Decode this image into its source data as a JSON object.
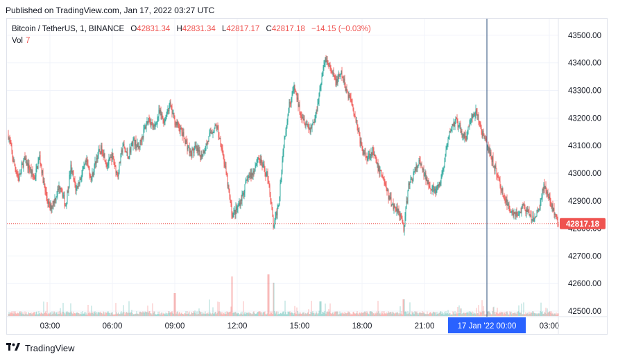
{
  "header": {
    "published": "Published on TradingView.com, Jan 17, 2022 03:27 UTC"
  },
  "legend": {
    "symbol": "Bitcoin / TetherUS, 1, BINANCE",
    "o_label": "O",
    "o_value": "42831.34",
    "h_label": "H",
    "h_value": "42831.34",
    "l_label": "L",
    "l_value": "42817.17",
    "c_label": "C",
    "c_value": "42817.18",
    "change": "−14.15 (−0.03%)",
    "vol_label": "Vol",
    "vol_value": "7"
  },
  "footer": {
    "brand": "TradingView"
  },
  "colors": {
    "up": "#26a69a",
    "down": "#ef5350",
    "price_tag": "#ef5350",
    "cursor_tag": "#2962ff",
    "crosshair": "#2a4d7a"
  },
  "chart_data": {
    "type": "candlestick",
    "title": "Bitcoin / TetherUS, 1, BINANCE",
    "ylim": [
      42480,
      43560
    ],
    "y_ticks": [
      "43500.00",
      "43400.00",
      "43300.00",
      "43200.00",
      "43100.00",
      "43000.00",
      "42900.00",
      "42800.00",
      "42700.00",
      "42600.00",
      "42500.00"
    ],
    "x_ticks": [
      "03:00",
      "06:00",
      "09:00",
      "12:00",
      "15:00",
      "18:00",
      "21:00",
      "00:00",
      "03:00"
    ],
    "cursor_label": "17 Jan '22   00:00",
    "last_price": "42817.18",
    "price_path": [
      [
        "01:00",
        43140
      ],
      [
        "01:15",
        43040
      ],
      [
        "01:30",
        42980
      ],
      [
        "01:45",
        43050
      ],
      [
        "02:00",
        43020
      ],
      [
        "02:15",
        42980
      ],
      [
        "02:30",
        43060
      ],
      [
        "02:45",
        42940
      ],
      [
        "03:00",
        42870
      ],
      [
        "03:15",
        42910
      ],
      [
        "03:30",
        42960
      ],
      [
        "03:45",
        42880
      ],
      [
        "04:00",
        43020
      ],
      [
        "04:15",
        42940
      ],
      [
        "04:30",
        42990
      ],
      [
        "04:45",
        43040
      ],
      [
        "05:00",
        42980
      ],
      [
        "05:15",
        43060
      ],
      [
        "05:30",
        43090
      ],
      [
        "05:45",
        43030
      ],
      [
        "06:00",
        43060
      ],
      [
        "06:15",
        42990
      ],
      [
        "06:30",
        43100
      ],
      [
        "06:45",
        43060
      ],
      [
        "07:00",
        43120
      ],
      [
        "07:15",
        43090
      ],
      [
        "07:30",
        43150
      ],
      [
        "07:45",
        43200
      ],
      [
        "08:00",
        43160
      ],
      [
        "08:15",
        43220
      ],
      [
        "08:30",
        43190
      ],
      [
        "08:45",
        43250
      ],
      [
        "09:00",
        43190
      ],
      [
        "09:15",
        43160
      ],
      [
        "09:30",
        43120
      ],
      [
        "09:45",
        43070
      ],
      [
        "10:00",
        43090
      ],
      [
        "10:15",
        43060
      ],
      [
        "10:30",
        43100
      ],
      [
        "10:45",
        43150
      ],
      [
        "11:00",
        43170
      ],
      [
        "11:15",
        43100
      ],
      [
        "11:30",
        42980
      ],
      [
        "11:45",
        42850
      ],
      [
        "12:00",
        42870
      ],
      [
        "12:15",
        42920
      ],
      [
        "12:30",
        42980
      ],
      [
        "12:45",
        43000
      ],
      [
        "13:00",
        43060
      ],
      [
        "13:15",
        43020
      ],
      [
        "13:30",
        42980
      ],
      [
        "13:45",
        42800
      ],
      [
        "14:00",
        42900
      ],
      [
        "14:15",
        43120
      ],
      [
        "14:30",
        43250
      ],
      [
        "14:45",
        43310
      ],
      [
        "15:00",
        43230
      ],
      [
        "15:15",
        43190
      ],
      [
        "15:30",
        43160
      ],
      [
        "15:45",
        43200
      ],
      [
        "16:00",
        43320
      ],
      [
        "16:15",
        43420
      ],
      [
        "16:30",
        43370
      ],
      [
        "16:45",
        43330
      ],
      [
        "17:00",
        43360
      ],
      [
        "17:15",
        43300
      ],
      [
        "17:30",
        43260
      ],
      [
        "17:45",
        43180
      ],
      [
        "18:00",
        43080
      ],
      [
        "18:15",
        43060
      ],
      [
        "18:30",
        43080
      ],
      [
        "18:45",
        43020
      ],
      [
        "19:00",
        42990
      ],
      [
        "19:15",
        42920
      ],
      [
        "19:30",
        42880
      ],
      [
        "19:45",
        42870
      ],
      [
        "20:00",
        42800
      ],
      [
        "20:15",
        42960
      ],
      [
        "20:30",
        43000
      ],
      [
        "20:45",
        43040
      ],
      [
        "21:00",
        42990
      ],
      [
        "21:15",
        42960
      ],
      [
        "21:30",
        42930
      ],
      [
        "21:45",
        42960
      ],
      [
        "22:00",
        43060
      ],
      [
        "22:15",
        43160
      ],
      [
        "22:30",
        43190
      ],
      [
        "22:45",
        43150
      ],
      [
        "23:00",
        43130
      ],
      [
        "23:15",
        43200
      ],
      [
        "23:30",
        43220
      ],
      [
        "23:45",
        43150
      ],
      [
        "00:00",
        43100
      ],
      [
        "00:15",
        43050
      ],
      [
        "00:30",
        42990
      ],
      [
        "00:45",
        42930
      ],
      [
        "01:00",
        42880
      ],
      [
        "01:15",
        42860
      ],
      [
        "01:30",
        42850
      ],
      [
        "01:45",
        42880
      ],
      [
        "02:00",
        42850
      ],
      [
        "02:15",
        42830
      ],
      [
        "02:30",
        42870
      ],
      [
        "02:45",
        42960
      ],
      [
        "03:00",
        42900
      ],
      [
        "03:27",
        42817
      ]
    ],
    "volume_ylim": [
      0,
      100
    ],
    "volume_spikes": [
      [
        "11:45",
        95
      ],
      [
        "13:30",
        100
      ],
      [
        "13:45",
        80
      ],
      [
        "09:00",
        55
      ],
      [
        "16:00",
        35
      ],
      [
        "20:00",
        40
      ],
      [
        "22:45",
        18
      ]
    ]
  }
}
